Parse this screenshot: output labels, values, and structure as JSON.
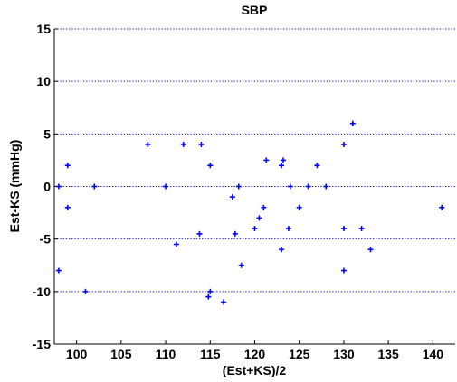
{
  "chart_data": {
    "type": "scatter",
    "title": "SBP",
    "xlabel": "(Est+KS)/2",
    "ylabel": "Est-KS (mmHg)",
    "xlim": [
      97.5,
      142.5
    ],
    "ylim": [
      -15,
      15
    ],
    "xticks": [
      100,
      105,
      110,
      115,
      120,
      125,
      130,
      135,
      140
    ],
    "yticks": [
      -15,
      -10,
      -5,
      0,
      5,
      10,
      15
    ],
    "grid": "horizontal dotted",
    "marker_color": "#0000ff",
    "grid_color": "#0000cc",
    "points": [
      {
        "x": 98.0,
        "y": 0
      },
      {
        "x": 98.0,
        "y": -8
      },
      {
        "x": 99.0,
        "y": 2
      },
      {
        "x": 99.0,
        "y": -2
      },
      {
        "x": 101.0,
        "y": -10
      },
      {
        "x": 102.0,
        "y": 0
      },
      {
        "x": 108.0,
        "y": 4
      },
      {
        "x": 110.0,
        "y": 0
      },
      {
        "x": 111.2,
        "y": -5.5
      },
      {
        "x": 112.0,
        "y": 4
      },
      {
        "x": 113.8,
        "y": -4.5
      },
      {
        "x": 114.0,
        "y": 4
      },
      {
        "x": 114.8,
        "y": -10.5
      },
      {
        "x": 115.0,
        "y": 2
      },
      {
        "x": 115.0,
        "y": -10
      },
      {
        "x": 116.5,
        "y": -11
      },
      {
        "x": 117.5,
        "y": -1
      },
      {
        "x": 117.8,
        "y": -4.5
      },
      {
        "x": 118.2,
        "y": 0
      },
      {
        "x": 118.5,
        "y": -7.5
      },
      {
        "x": 120.0,
        "y": -4
      },
      {
        "x": 120.5,
        "y": -3
      },
      {
        "x": 121.0,
        "y": -2
      },
      {
        "x": 121.3,
        "y": 2.5
      },
      {
        "x": 123.0,
        "y": -6
      },
      {
        "x": 123.0,
        "y": 2
      },
      {
        "x": 123.2,
        "y": 2.5
      },
      {
        "x": 123.8,
        "y": -4
      },
      {
        "x": 124.0,
        "y": 0
      },
      {
        "x": 125.0,
        "y": -2
      },
      {
        "x": 126.0,
        "y": 0
      },
      {
        "x": 127.0,
        "y": 2
      },
      {
        "x": 128.0,
        "y": 0
      },
      {
        "x": 130.0,
        "y": 4
      },
      {
        "x": 130.0,
        "y": -4
      },
      {
        "x": 130.0,
        "y": -8
      },
      {
        "x": 131.0,
        "y": 6
      },
      {
        "x": 132.0,
        "y": -4
      },
      {
        "x": 133.0,
        "y": -6
      },
      {
        "x": 141.0,
        "y": -2
      }
    ]
  }
}
